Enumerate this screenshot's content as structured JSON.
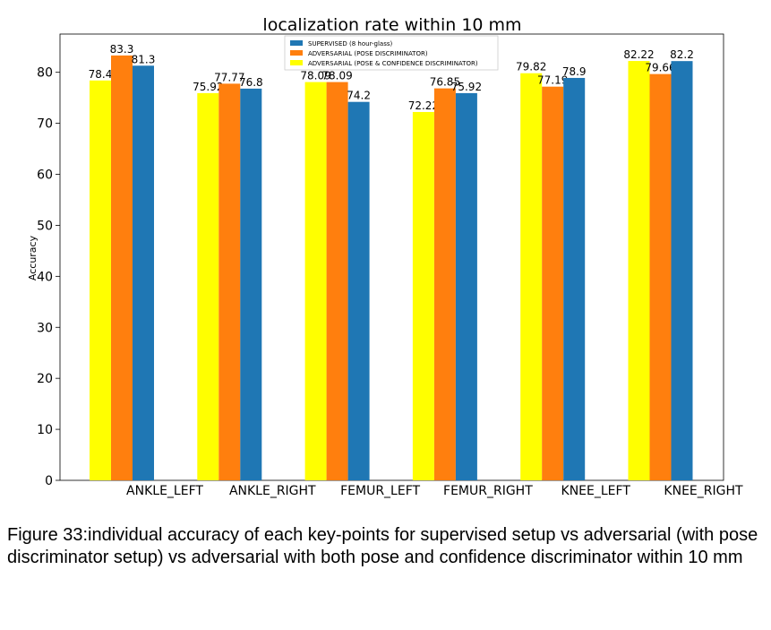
{
  "chart_data": {
    "type": "bar",
    "title": "localization rate within 10 mm",
    "xlabel": "",
    "ylabel": "Accuracy",
    "ylim": [
      0,
      87.5
    ],
    "yticks": [
      0,
      10,
      20,
      30,
      40,
      50,
      60,
      70,
      80
    ],
    "grid": false,
    "legend_position": "top-center",
    "categories": [
      "ANKLE_LEFT",
      "ANKLE_RIGHT",
      "FEMUR_LEFT",
      "FEMUR_RIGHT",
      "KNEE_LEFT",
      "KNEE_RIGHT"
    ],
    "series": [
      {
        "name": "ADVERSARIAL (POSE & CONFIDENCE DISCRIMINATOR)",
        "color": "#ffff00",
        "values": [
          78.4,
          75.92,
          78.09,
          72.22,
          79.82,
          82.22
        ],
        "labels": [
          "78.4",
          "75.92",
          "78.09",
          "72.22",
          "79.82",
          "82.22"
        ]
      },
      {
        "name": "ADVERSARIAL (POSE DISCRIMINATOR)",
        "color": "#ff7f0e",
        "values": [
          83.3,
          77.77,
          78.09,
          76.85,
          77.19,
          79.66
        ],
        "labels": [
          "83.3",
          "77.77",
          "78.09",
          "76.85",
          "77.19",
          "79.66"
        ]
      },
      {
        "name": "SUPERVISED (8 hour-glass)",
        "color": "#1f77b4",
        "values": [
          81.3,
          76.8,
          74.2,
          75.92,
          78.9,
          82.2
        ],
        "labels": [
          "81.3",
          "76.8",
          "74.2",
          "75.92",
          "78.9",
          "82.2"
        ]
      }
    ],
    "legend_order": [
      2,
      1,
      0
    ]
  },
  "caption": "Figure 33:individual accuracy of each key-points for supervised setup vs adversarial (with pose discriminator setup) vs adversarial with both pose and confidence discriminator within 10 mm"
}
